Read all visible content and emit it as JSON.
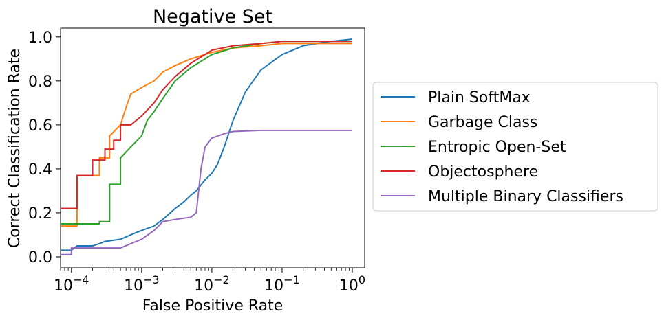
{
  "chart_data": {
    "type": "line",
    "title": "Negative Set",
    "xlabel": "False Positive Rate",
    "ylabel": "Correct Classification Rate",
    "xscale": "log",
    "xlim": [
      7e-05,
      1.5
    ],
    "ylim": [
      -0.05,
      1.04
    ],
    "grid": false,
    "legend_position": "outside-right",
    "x_ticks": [
      {
        "value": 0.0001,
        "base": "10",
        "exp": "−4"
      },
      {
        "value": 0.001,
        "base": "10",
        "exp": "−3"
      },
      {
        "value": 0.01,
        "base": "10",
        "exp": "−2"
      },
      {
        "value": 0.1,
        "base": "10",
        "exp": "−1"
      },
      {
        "value": 1,
        "base": "10",
        "exp": "0"
      }
    ],
    "y_ticks": [
      {
        "value": 0.0,
        "label": "0.0"
      },
      {
        "value": 0.2,
        "label": "0.2"
      },
      {
        "value": 0.4,
        "label": "0.4"
      },
      {
        "value": 0.6,
        "label": "0.6"
      },
      {
        "value": 0.8,
        "label": "0.8"
      },
      {
        "value": 1.0,
        "label": "1.0"
      }
    ],
    "series": [
      {
        "name": "Plain SoftMax",
        "color": "#1f77b4",
        "points": [
          [
            7e-05,
            0.03
          ],
          [
            0.0001,
            0.03
          ],
          [
            0.00012,
            0.05
          ],
          [
            0.0002,
            0.05
          ],
          [
            0.00025,
            0.06
          ],
          [
            0.0003,
            0.07
          ],
          [
            0.0005,
            0.08
          ],
          [
            0.0007,
            0.1
          ],
          [
            0.001,
            0.12
          ],
          [
            0.0015,
            0.14
          ],
          [
            0.002,
            0.17
          ],
          [
            0.003,
            0.22
          ],
          [
            0.004,
            0.25
          ],
          [
            0.005,
            0.28
          ],
          [
            0.006,
            0.3
          ],
          [
            0.008,
            0.35
          ],
          [
            0.01,
            0.38
          ],
          [
            0.012,
            0.42
          ],
          [
            0.015,
            0.5
          ],
          [
            0.02,
            0.62
          ],
          [
            0.03,
            0.75
          ],
          [
            0.05,
            0.85
          ],
          [
            0.1,
            0.92
          ],
          [
            0.2,
            0.96
          ],
          [
            0.5,
            0.98
          ],
          [
            1.0,
            0.99
          ]
        ]
      },
      {
        "name": "Garbage Class",
        "color": "#ff7f0e",
        "points": [
          [
            7e-05,
            0.14
          ],
          [
            0.00012,
            0.14
          ],
          [
            0.00012,
            0.37
          ],
          [
            0.00025,
            0.37
          ],
          [
            0.00025,
            0.45
          ],
          [
            0.00035,
            0.45
          ],
          [
            0.00035,
            0.55
          ],
          [
            0.0005,
            0.6
          ],
          [
            0.0006,
            0.68
          ],
          [
            0.0007,
            0.74
          ],
          [
            0.001,
            0.77
          ],
          [
            0.0015,
            0.8
          ],
          [
            0.002,
            0.84
          ],
          [
            0.003,
            0.87
          ],
          [
            0.005,
            0.9
          ],
          [
            0.01,
            0.93
          ],
          [
            0.02,
            0.95
          ],
          [
            0.05,
            0.96
          ],
          [
            0.1,
            0.97
          ],
          [
            1.0,
            0.97
          ]
        ]
      },
      {
        "name": "Entropic Open-Set",
        "color": "#2ca02c",
        "points": [
          [
            7e-05,
            0.15
          ],
          [
            0.00025,
            0.15
          ],
          [
            0.00025,
            0.16
          ],
          [
            0.00035,
            0.16
          ],
          [
            0.00035,
            0.33
          ],
          [
            0.0005,
            0.33
          ],
          [
            0.0005,
            0.45
          ],
          [
            0.0007,
            0.5
          ],
          [
            0.001,
            0.55
          ],
          [
            0.0012,
            0.62
          ],
          [
            0.0015,
            0.66
          ],
          [
            0.002,
            0.72
          ],
          [
            0.003,
            0.8
          ],
          [
            0.005,
            0.86
          ],
          [
            0.01,
            0.92
          ],
          [
            0.02,
            0.95
          ],
          [
            0.05,
            0.97
          ],
          [
            0.1,
            0.98
          ],
          [
            1.0,
            0.98
          ]
        ]
      },
      {
        "name": "Objectosphere",
        "color": "#d62728",
        "points": [
          [
            7e-05,
            0.22
          ],
          [
            0.00012,
            0.22
          ],
          [
            0.00012,
            0.37
          ],
          [
            0.0002,
            0.37
          ],
          [
            0.0002,
            0.44
          ],
          [
            0.0003,
            0.44
          ],
          [
            0.0003,
            0.49
          ],
          [
            0.0004,
            0.49
          ],
          [
            0.0004,
            0.53
          ],
          [
            0.0005,
            0.53
          ],
          [
            0.0005,
            0.6
          ],
          [
            0.0007,
            0.6
          ],
          [
            0.001,
            0.64
          ],
          [
            0.0015,
            0.7
          ],
          [
            0.002,
            0.76
          ],
          [
            0.003,
            0.82
          ],
          [
            0.005,
            0.88
          ],
          [
            0.01,
            0.94
          ],
          [
            0.02,
            0.96
          ],
          [
            0.05,
            0.97
          ],
          [
            0.1,
            0.98
          ],
          [
            1.0,
            0.98
          ]
        ]
      },
      {
        "name": "Multiple Binary Classifiers",
        "color": "#9467bd",
        "points": [
          [
            7e-05,
            0.01
          ],
          [
            0.0001,
            0.01
          ],
          [
            0.0001,
            0.04
          ],
          [
            0.0005,
            0.04
          ],
          [
            0.0007,
            0.06
          ],
          [
            0.001,
            0.08
          ],
          [
            0.0015,
            0.12
          ],
          [
            0.002,
            0.16
          ],
          [
            0.003,
            0.17
          ],
          [
            0.005,
            0.18
          ],
          [
            0.006,
            0.2
          ],
          [
            0.007,
            0.4
          ],
          [
            0.008,
            0.5
          ],
          [
            0.01,
            0.54
          ],
          [
            0.015,
            0.56
          ],
          [
            0.02,
            0.57
          ],
          [
            0.05,
            0.575
          ],
          [
            0.1,
            0.575
          ],
          [
            1.0,
            0.575
          ]
        ]
      }
    ]
  }
}
